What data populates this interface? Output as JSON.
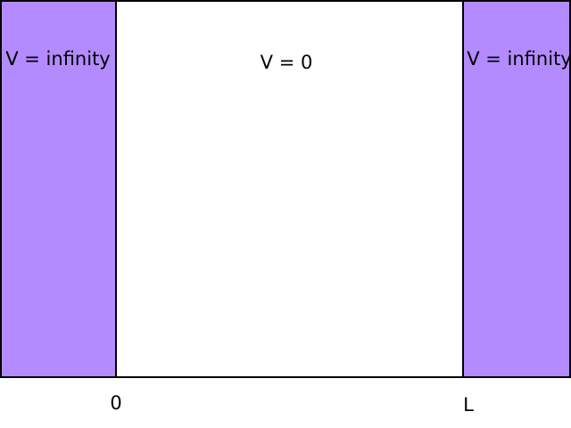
{
  "regions": {
    "left_barrier": {
      "label": "V = infinity",
      "fill": "#b38bff"
    },
    "well": {
      "label": "V = 0",
      "fill": "#ffffff"
    },
    "right_barrier": {
      "label": "V = infinity",
      "fill": "#b38bff"
    }
  },
  "axis": {
    "left_marker": "0",
    "right_marker": "L"
  },
  "outline_color": "#000000"
}
